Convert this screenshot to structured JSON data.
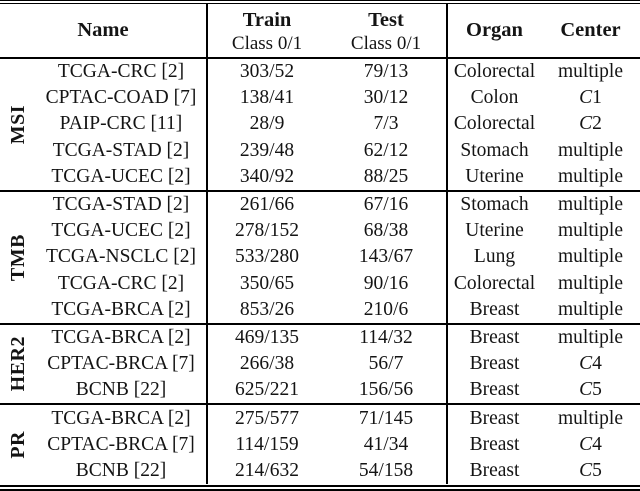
{
  "table": {
    "header": {
      "name": "Name",
      "train": "Train",
      "test": "Test",
      "subheader": "Class 0/1",
      "organ": "Organ",
      "center": "Center"
    },
    "groups": [
      {
        "label": "MSI",
        "rows": [
          {
            "name": "TCGA-CRC [2]",
            "train": "303/52",
            "test": "79/13",
            "organ": "Colorectal",
            "center": "multiple",
            "center_italic": "",
            "center_text": "multiple"
          },
          {
            "name": "CPTAC-COAD [7]",
            "train": "138/41",
            "test": "30/12",
            "organ": "Colon",
            "center": "C1",
            "center_italic": "C",
            "center_text": "1"
          },
          {
            "name": "PAIP-CRC [11]",
            "train": "28/9",
            "test": "7/3",
            "organ": "Colorectal",
            "center": "C2",
            "center_italic": "C",
            "center_text": "2"
          },
          {
            "name": "TCGA-STAD [2]",
            "train": "239/48",
            "test": "62/12",
            "organ": "Stomach",
            "center": "multiple",
            "center_italic": "",
            "center_text": "multiple"
          },
          {
            "name": "TCGA-UCEC [2]",
            "train": "340/92",
            "test": "88/25",
            "organ": "Uterine",
            "center": "multiple",
            "center_italic": "",
            "center_text": "multiple"
          }
        ]
      },
      {
        "label": "TMB",
        "rows": [
          {
            "name": "TCGA-STAD [2]",
            "train": "261/66",
            "test": "67/16",
            "organ": "Stomach",
            "center": "multiple",
            "center_italic": "",
            "center_text": "multiple"
          },
          {
            "name": "TCGA-UCEC [2]",
            "train": "278/152",
            "test": "68/38",
            "organ": "Uterine",
            "center": "multiple",
            "center_italic": "",
            "center_text": "multiple"
          },
          {
            "name": "TCGA-NSCLC [2]",
            "train": "533/280",
            "test": "143/67",
            "organ": "Lung",
            "center": "multiple",
            "center_italic": "",
            "center_text": "multiple"
          },
          {
            "name": "TCGA-CRC [2]",
            "train": "350/65",
            "test": "90/16",
            "organ": "Colorectal",
            "center": "multiple",
            "center_italic": "",
            "center_text": "multiple"
          },
          {
            "name": "TCGA-BRCA [2]",
            "train": "853/26",
            "test": "210/6",
            "organ": "Breast",
            "center": "multiple",
            "center_italic": "",
            "center_text": "multiple"
          }
        ]
      },
      {
        "label": "HER2",
        "rows": [
          {
            "name": "TCGA-BRCA [2]",
            "train": "469/135",
            "test": "114/32",
            "organ": "Breast",
            "center": "multiple",
            "center_italic": "",
            "center_text": "multiple"
          },
          {
            "name": "CPTAC-BRCA [7]",
            "train": "266/38",
            "test": "56/7",
            "organ": "Breast",
            "center": "C4",
            "center_italic": "C",
            "center_text": "4"
          },
          {
            "name": "BCNB [22]",
            "train": "625/221",
            "test": "156/56",
            "organ": "Breast",
            "center": "C5",
            "center_italic": "C",
            "center_text": "5"
          }
        ]
      },
      {
        "label": "PR",
        "rows": [
          {
            "name": "TCGA-BRCA [2]",
            "train": "275/577",
            "test": "71/145",
            "organ": "Breast",
            "center": "multiple",
            "center_italic": "",
            "center_text": "multiple"
          },
          {
            "name": "CPTAC-BRCA [7]",
            "train": "114/159",
            "test": "41/34",
            "organ": "Breast",
            "center": "C4",
            "center_italic": "C",
            "center_text": "4"
          },
          {
            "name": "BCNB [22]",
            "train": "214/632",
            "test": "54/158",
            "organ": "Breast",
            "center": "C5",
            "center_italic": "C",
            "center_text": "5"
          }
        ]
      }
    ]
  },
  "colors": {
    "text": "#141414",
    "rule": "#000000",
    "background": "#ffffff"
  }
}
